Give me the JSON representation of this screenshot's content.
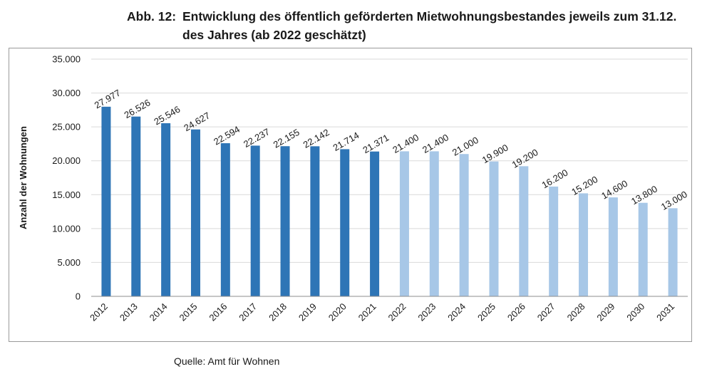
{
  "figure": {
    "number": "Abb. 12:",
    "title_line1": "Entwicklung des öffentlich geförderten Mietwohnungsbestandes jeweils zum 31.12.",
    "title_line2": "des Jahres (ab 2022 geschätzt)",
    "source": "Quelle: Amt für Wohnen"
  },
  "colors": {
    "actual": "#2e75b6",
    "estimated": "#a7c7e7",
    "grid": "#d9d9d9",
    "axis": "#8c8c8c"
  },
  "chart_data": {
    "type": "bar",
    "categories": [
      "2012",
      "2013",
      "2014",
      "2015",
      "2016",
      "2017",
      "2018",
      "2019",
      "2020",
      "2021",
      "2022",
      "2023",
      "2024",
      "2025",
      "2026",
      "2027",
      "2028",
      "2029",
      "2030",
      "2031"
    ],
    "values": [
      27977,
      26526,
      25546,
      24627,
      22594,
      22237,
      22155,
      22142,
      21714,
      21371,
      21400,
      21400,
      21000,
      19900,
      19200,
      16200,
      15200,
      14600,
      13800,
      13000
    ],
    "value_labels": [
      "27.977",
      "26.526",
      "25.546",
      "24.627",
      "22.594",
      "22.237",
      "22.155",
      "22.142",
      "21.714",
      "21.371",
      "21.400",
      "21.400",
      "21.000",
      "19.900",
      "19.200",
      "16.200",
      "15.200",
      "14.600",
      "13.800",
      "13.000"
    ],
    "estimated_from": "2022",
    "ylabel": "Anzahl der Wohnungen",
    "xlabel": "",
    "ylim": [
      0,
      35000
    ],
    "yticks": [
      0,
      5000,
      10000,
      15000,
      20000,
      25000,
      30000,
      35000
    ],
    "ytick_labels": [
      "0",
      "5.000",
      "10.000",
      "15.000",
      "20.000",
      "25.000",
      "30.000",
      "35.000"
    ],
    "grid": true,
    "legend": "none"
  }
}
